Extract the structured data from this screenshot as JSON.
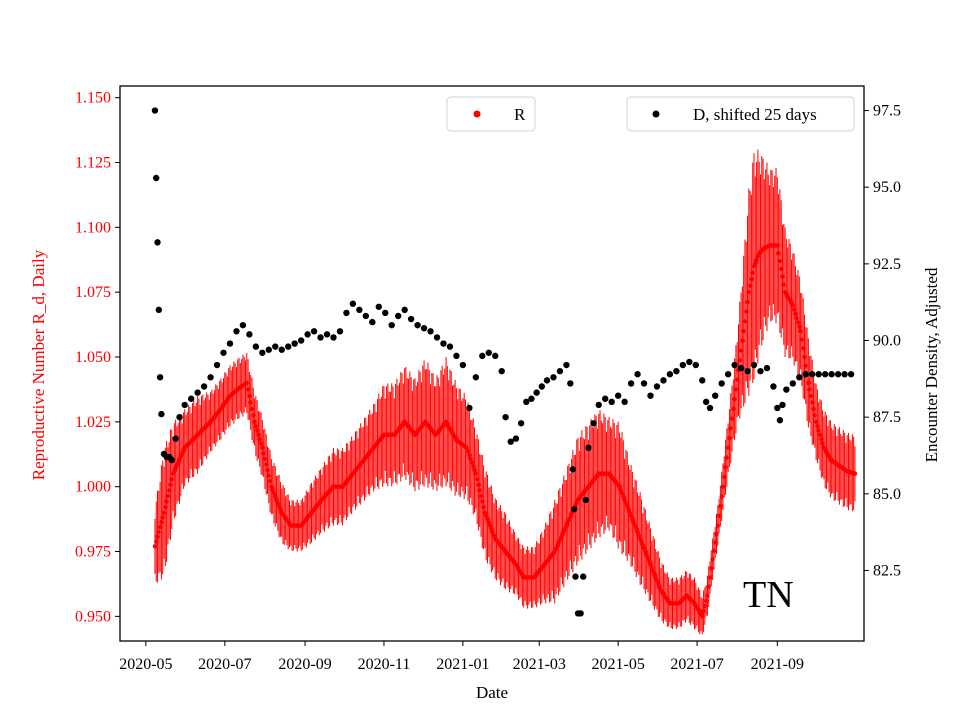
{
  "chart_data": {
    "type": "line",
    "title": "",
    "annotation": "TN",
    "xlabel": "Date",
    "ylabel_left": "Reproductive Number R_d, Daily",
    "ylabel_right": "Encounter Density, Adjusted",
    "x_ticks": [
      "2020-05",
      "2020-07",
      "2020-09",
      "2020-11",
      "2021-01",
      "2021-03",
      "2021-05",
      "2021-07",
      "2021-09"
    ],
    "y_left_ticks": [
      "0.950",
      "0.975",
      "1.000",
      "1.025",
      "1.050",
      "1.075",
      "1.100",
      "1.125",
      "1.150"
    ],
    "y_right_ticks": [
      "82.5",
      "85.0",
      "87.5",
      "90.0",
      "92.5",
      "95.0",
      "97.5"
    ],
    "ylim_left": [
      0.9405,
      1.1545
    ],
    "ylim_right": [
      80.2,
      98.3
    ],
    "xlim_days": [
      -20,
      555
    ],
    "x_origin": "2020-05-01",
    "legend": [
      {
        "label": "R",
        "color": "#ff0000",
        "placement": "top-center"
      },
      {
        "label": "D, shifted 25 days",
        "color": "#000000",
        "placement": "top-right"
      }
    ],
    "series_R": {
      "name": "R",
      "color": "#ff0000",
      "axis": "left",
      "note": "daily values with error bars; days since 2020-05-01",
      "points": [
        [
          7,
          0.977
        ],
        [
          14,
          0.99
        ],
        [
          21,
          1.005
        ],
        [
          30,
          1.015
        ],
        [
          40,
          1.02
        ],
        [
          50,
          1.025
        ],
        [
          58,
          1.03
        ],
        [
          65,
          1.035
        ],
        [
          72,
          1.038
        ],
        [
          78,
          1.04
        ],
        [
          84,
          1.025
        ],
        [
          90,
          1.015
        ],
        [
          97,
          1.0
        ],
        [
          105,
          0.99
        ],
        [
          112,
          0.985
        ],
        [
          120,
          0.985
        ],
        [
          128,
          0.99
        ],
        [
          136,
          0.995
        ],
        [
          145,
          1.0
        ],
        [
          152,
          1.0
        ],
        [
          160,
          1.005
        ],
        [
          168,
          1.01
        ],
        [
          176,
          1.015
        ],
        [
          184,
          1.02
        ],
        [
          192,
          1.02
        ],
        [
          200,
          1.025
        ],
        [
          208,
          1.02
        ],
        [
          216,
          1.025
        ],
        [
          224,
          1.02
        ],
        [
          232,
          1.025
        ],
        [
          240,
          1.018
        ],
        [
          248,
          1.015
        ],
        [
          255,
          1.005
        ],
        [
          262,
          0.99
        ],
        [
          270,
          0.98
        ],
        [
          278,
          0.975
        ],
        [
          286,
          0.97
        ],
        [
          292,
          0.965
        ],
        [
          300,
          0.965
        ],
        [
          308,
          0.97
        ],
        [
          316,
          0.975
        ],
        [
          325,
          0.985
        ],
        [
          334,
          0.995
        ],
        [
          342,
          1.0
        ],
        [
          350,
          1.005
        ],
        [
          358,
          1.005
        ],
        [
          366,
          1.0
        ],
        [
          374,
          0.99
        ],
        [
          382,
          0.98
        ],
        [
          390,
          0.97
        ],
        [
          398,
          0.96
        ],
        [
          405,
          0.955
        ],
        [
          412,
          0.955
        ],
        [
          418,
          0.958
        ],
        [
          424,
          0.955
        ],
        [
          430,
          0.95
        ],
        [
          434,
          0.958
        ],
        [
          438,
          0.972
        ],
        [
          442,
          0.985
        ],
        [
          446,
          1.0
        ],
        [
          450,
          1.015
        ],
        [
          454,
          1.03
        ],
        [
          458,
          1.045
        ],
        [
          462,
          1.06
        ],
        [
          466,
          1.075
        ],
        [
          470,
          1.085
        ],
        [
          474,
          1.09
        ],
        [
          478,
          1.092
        ],
        [
          482,
          1.093
        ],
        [
          488,
          1.093
        ],
        [
          494,
          1.075
        ],
        [
          500,
          1.07
        ],
        [
          506,
          1.06
        ],
        [
          512,
          1.04
        ],
        [
          518,
          1.025
        ],
        [
          524,
          1.015
        ],
        [
          530,
          1.01
        ],
        [
          536,
          1.008
        ],
        [
          542,
          1.006
        ],
        [
          548,
          1.005
        ]
      ],
      "error": [
        [
          7,
          0.015
        ],
        [
          14,
          0.025
        ],
        [
          21,
          0.02
        ],
        [
          30,
          0.015
        ],
        [
          40,
          0.015
        ],
        [
          50,
          0.012
        ],
        [
          58,
          0.012
        ],
        [
          65,
          0.012
        ],
        [
          72,
          0.012
        ],
        [
          78,
          0.012
        ],
        [
          84,
          0.012
        ],
        [
          90,
          0.012
        ],
        [
          97,
          0.012
        ],
        [
          105,
          0.012
        ],
        [
          112,
          0.01
        ],
        [
          120,
          0.01
        ],
        [
          128,
          0.012
        ],
        [
          136,
          0.013
        ],
        [
          145,
          0.015
        ],
        [
          152,
          0.015
        ],
        [
          160,
          0.015
        ],
        [
          168,
          0.016
        ],
        [
          176,
          0.017
        ],
        [
          184,
          0.02
        ],
        [
          192,
          0.02
        ],
        [
          200,
          0.022
        ],
        [
          208,
          0.022
        ],
        [
          216,
          0.025
        ],
        [
          224,
          0.022
        ],
        [
          232,
          0.025
        ],
        [
          240,
          0.022
        ],
        [
          248,
          0.02
        ],
        [
          255,
          0.018
        ],
        [
          262,
          0.018
        ],
        [
          270,
          0.016
        ],
        [
          278,
          0.015
        ],
        [
          286,
          0.012
        ],
        [
          292,
          0.012
        ],
        [
          300,
          0.012
        ],
        [
          308,
          0.015
        ],
        [
          316,
          0.02
        ],
        [
          325,
          0.022
        ],
        [
          334,
          0.025
        ],
        [
          342,
          0.025
        ],
        [
          350,
          0.025
        ],
        [
          358,
          0.022
        ],
        [
          366,
          0.025
        ],
        [
          374,
          0.02
        ],
        [
          382,
          0.018
        ],
        [
          390,
          0.015
        ],
        [
          398,
          0.012
        ],
        [
          405,
          0.01
        ],
        [
          412,
          0.01
        ],
        [
          418,
          0.01
        ],
        [
          424,
          0.01
        ],
        [
          430,
          0.008
        ],
        [
          434,
          0.008
        ],
        [
          438,
          0.008
        ],
        [
          442,
          0.008
        ],
        [
          446,
          0.01
        ],
        [
          450,
          0.012
        ],
        [
          454,
          0.015
        ],
        [
          458,
          0.02
        ],
        [
          462,
          0.03
        ],
        [
          466,
          0.04
        ],
        [
          470,
          0.045
        ],
        [
          474,
          0.04
        ],
        [
          478,
          0.035
        ],
        [
          482,
          0.03
        ],
        [
          488,
          0.03
        ],
        [
          494,
          0.025
        ],
        [
          500,
          0.022
        ],
        [
          506,
          0.02
        ],
        [
          512,
          0.018
        ],
        [
          518,
          0.015
        ],
        [
          524,
          0.015
        ],
        [
          530,
          0.015
        ],
        [
          536,
          0.015
        ],
        [
          542,
          0.015
        ],
        [
          548,
          0.015
        ]
      ]
    },
    "series_D": {
      "name": "D, shifted 25 days",
      "color": "#000000",
      "axis": "right",
      "note": "days since 2020-05-01",
      "points": [
        [
          7,
          97.5
        ],
        [
          8,
          95.3
        ],
        [
          9,
          93.2
        ],
        [
          10,
          91.0
        ],
        [
          11,
          88.8
        ],
        [
          12,
          87.6
        ],
        [
          14,
          86.3
        ],
        [
          16,
          86.2
        ],
        [
          18,
          86.2
        ],
        [
          20,
          86.1
        ],
        [
          23,
          86.8
        ],
        [
          26,
          87.5
        ],
        [
          30,
          87.9
        ],
        [
          35,
          88.1
        ],
        [
          40,
          88.3
        ],
        [
          45,
          88.5
        ],
        [
          50,
          88.8
        ],
        [
          55,
          89.2
        ],
        [
          60,
          89.6
        ],
        [
          65,
          89.9
        ],
        [
          70,
          90.3
        ],
        [
          75,
          90.5
        ],
        [
          80,
          90.2
        ],
        [
          85,
          89.8
        ],
        [
          90,
          89.6
        ],
        [
          95,
          89.7
        ],
        [
          100,
          89.8
        ],
        [
          105,
          89.7
        ],
        [
          110,
          89.8
        ],
        [
          115,
          89.9
        ],
        [
          120,
          90.0
        ],
        [
          125,
          90.2
        ],
        [
          130,
          90.3
        ],
        [
          135,
          90.1
        ],
        [
          140,
          90.2
        ],
        [
          145,
          90.1
        ],
        [
          150,
          90.3
        ],
        [
          155,
          90.9
        ],
        [
          160,
          91.2
        ],
        [
          165,
          91.0
        ],
        [
          170,
          90.8
        ],
        [
          175,
          90.6
        ],
        [
          180,
          91.1
        ],
        [
          185,
          90.9
        ],
        [
          190,
          90.5
        ],
        [
          195,
          90.8
        ],
        [
          200,
          91.0
        ],
        [
          205,
          90.7
        ],
        [
          210,
          90.5
        ],
        [
          215,
          90.4
        ],
        [
          220,
          90.3
        ],
        [
          225,
          90.1
        ],
        [
          230,
          89.9
        ],
        [
          235,
          89.8
        ],
        [
          240,
          89.5
        ],
        [
          245,
          89.2
        ],
        [
          250,
          87.8
        ],
        [
          255,
          88.8
        ],
        [
          260,
          89.5
        ],
        [
          265,
          89.6
        ],
        [
          270,
          89.5
        ],
        [
          275,
          89.0
        ],
        [
          278,
          87.5
        ],
        [
          282,
          86.7
        ],
        [
          286,
          86.8
        ],
        [
          290,
          87.3
        ],
        [
          294,
          88.0
        ],
        [
          298,
          88.1
        ],
        [
          302,
          88.3
        ],
        [
          306,
          88.5
        ],
        [
          310,
          88.7
        ],
        [
          315,
          88.8
        ],
        [
          320,
          89.0
        ],
        [
          325,
          89.2
        ],
        [
          328,
          88.6
        ],
        [
          330,
          85.8
        ],
        [
          331,
          84.5
        ],
        [
          332,
          82.3
        ],
        [
          334,
          81.1
        ],
        [
          336,
          81.1
        ],
        [
          338,
          82.3
        ],
        [
          340,
          84.8
        ],
        [
          342,
          86.5
        ],
        [
          346,
          87.3
        ],
        [
          350,
          87.9
        ],
        [
          355,
          88.1
        ],
        [
          360,
          88.0
        ],
        [
          365,
          88.2
        ],
        [
          370,
          88.0
        ],
        [
          375,
          88.6
        ],
        [
          380,
          88.9
        ],
        [
          385,
          88.6
        ],
        [
          390,
          88.2
        ],
        [
          395,
          88.5
        ],
        [
          400,
          88.7
        ],
        [
          405,
          88.9
        ],
        [
          410,
          89.0
        ],
        [
          415,
          89.2
        ],
        [
          420,
          89.3
        ],
        [
          425,
          89.2
        ],
        [
          430,
          88.7
        ],
        [
          433,
          88.0
        ],
        [
          436,
          87.8
        ],
        [
          440,
          88.2
        ],
        [
          445,
          88.6
        ],
        [
          450,
          88.9
        ],
        [
          455,
          89.2
        ],
        [
          460,
          89.1
        ],
        [
          465,
          89.0
        ],
        [
          470,
          89.2
        ],
        [
          475,
          89.0
        ],
        [
          480,
          89.1
        ],
        [
          485,
          88.5
        ],
        [
          488,
          87.8
        ],
        [
          490,
          87.4
        ],
        [
          492,
          87.9
        ],
        [
          495,
          88.4
        ],
        [
          500,
          88.6
        ],
        [
          505,
          88.8
        ],
        [
          510,
          88.9
        ],
        [
          515,
          88.9
        ],
        [
          520,
          88.9
        ],
        [
          525,
          88.9
        ],
        [
          530,
          88.9
        ],
        [
          535,
          88.9
        ],
        [
          540,
          88.9
        ],
        [
          545,
          88.9
        ]
      ]
    }
  }
}
